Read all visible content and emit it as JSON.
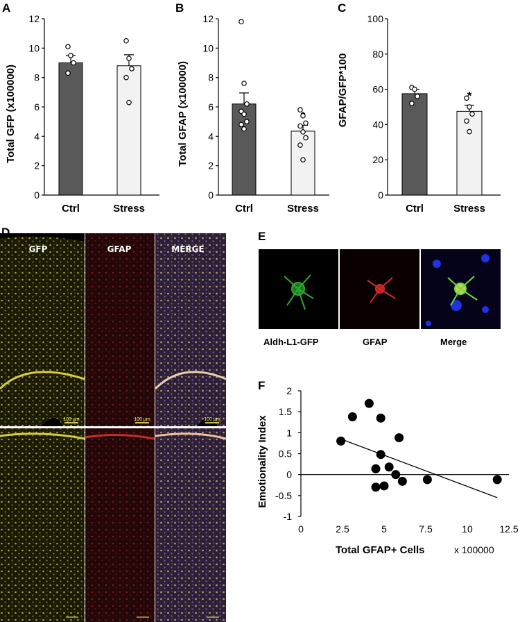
{
  "chart_data": [
    {
      "panel": "A",
      "type": "bar",
      "ylabel": "Total GFP (x100000)",
      "ylim": [
        0,
        12
      ],
      "yticks": [
        0,
        2,
        4,
        6,
        8,
        10,
        12
      ],
      "categories": [
        "Ctrl",
        "Stress"
      ],
      "values": [
        9.0,
        8.8
      ],
      "errors": [
        0.5,
        0.75
      ],
      "colors": [
        "#595959",
        "#f2f2f2"
      ],
      "points": [
        [
          10.1,
          9.5,
          9.0,
          8.3
        ],
        [
          10.5,
          9.3,
          8.6,
          8.0,
          6.3
        ]
      ],
      "annotations": [
        "",
        ""
      ]
    },
    {
      "panel": "B",
      "type": "bar",
      "ylabel": "Total GFAP (x100000)",
      "ylim": [
        0,
        12
      ],
      "yticks": [
        0,
        2,
        4,
        6,
        8,
        10,
        12
      ],
      "categories": [
        "Ctrl",
        "Stress"
      ],
      "values": [
        6.2,
        4.35
      ],
      "errors": [
        0.75,
        0.4
      ],
      "colors": [
        "#595959",
        "#f2f2f2"
      ],
      "points": [
        [
          11.8,
          7.6,
          6.2,
          5.7,
          5.5,
          5.0,
          4.8,
          4.5
        ],
        [
          5.8,
          5.4,
          4.9,
          4.7,
          4.3,
          3.9,
          3.4,
          2.4
        ]
      ],
      "annotations": [
        "",
        "*"
      ]
    },
    {
      "panel": "C",
      "type": "bar",
      "ylabel": "GFAP/GFP*100",
      "ylim": [
        0,
        100
      ],
      "yticks": [
        0,
        20,
        40,
        60,
        80,
        100
      ],
      "categories": [
        "Ctrl",
        "Stress"
      ],
      "values": [
        57.5,
        47.5
      ],
      "errors": [
        2.5,
        3.5
      ],
      "colors": [
        "#595959",
        "#f2f2f2"
      ],
      "points": [
        [
          61,
          60,
          56,
          52
        ],
        [
          55,
          50,
          46,
          42,
          36
        ]
      ],
      "annotations": [
        "",
        "*"
      ]
    },
    {
      "panel": "F",
      "type": "scatter",
      "xlabel": "Total GFAP+ Cells",
      "xunit": "x 100000",
      "ylabel": "Emotionality Index",
      "xlim": [
        0,
        12.5
      ],
      "ylim": [
        -1,
        2
      ],
      "xticks": [
        0,
        2.5,
        5,
        7.5,
        10,
        12.5
      ],
      "yticks": [
        -1,
        -0.5,
        0,
        0.5,
        1,
        1.5,
        2
      ],
      "points": [
        [
          2.4,
          0.8
        ],
        [
          3.1,
          1.38
        ],
        [
          4.1,
          1.7
        ],
        [
          4.8,
          1.35
        ],
        [
          5.9,
          0.88
        ],
        [
          4.8,
          0.48
        ],
        [
          5.3,
          0.18
        ],
        [
          4.5,
          0.14
        ],
        [
          5.7,
          0.0
        ],
        [
          6.1,
          -0.16
        ],
        [
          7.6,
          -0.12
        ],
        [
          11.8,
          -0.12
        ],
        [
          4.5,
          -0.3
        ],
        [
          5.0,
          -0.27
        ]
      ],
      "trendline": [
        [
          2.4,
          0.85
        ],
        [
          11.8,
          -0.55
        ]
      ],
      "hline": 0
    }
  ],
  "panel_d": {
    "label": "D",
    "channels": [
      "GFP",
      "GFAP",
      "MERGE"
    ],
    "scalebar": "100 µm"
  },
  "panel_e": {
    "label": "E",
    "channels": [
      "Aldh-L1-GFP",
      "GFAP",
      "Merge"
    ]
  }
}
